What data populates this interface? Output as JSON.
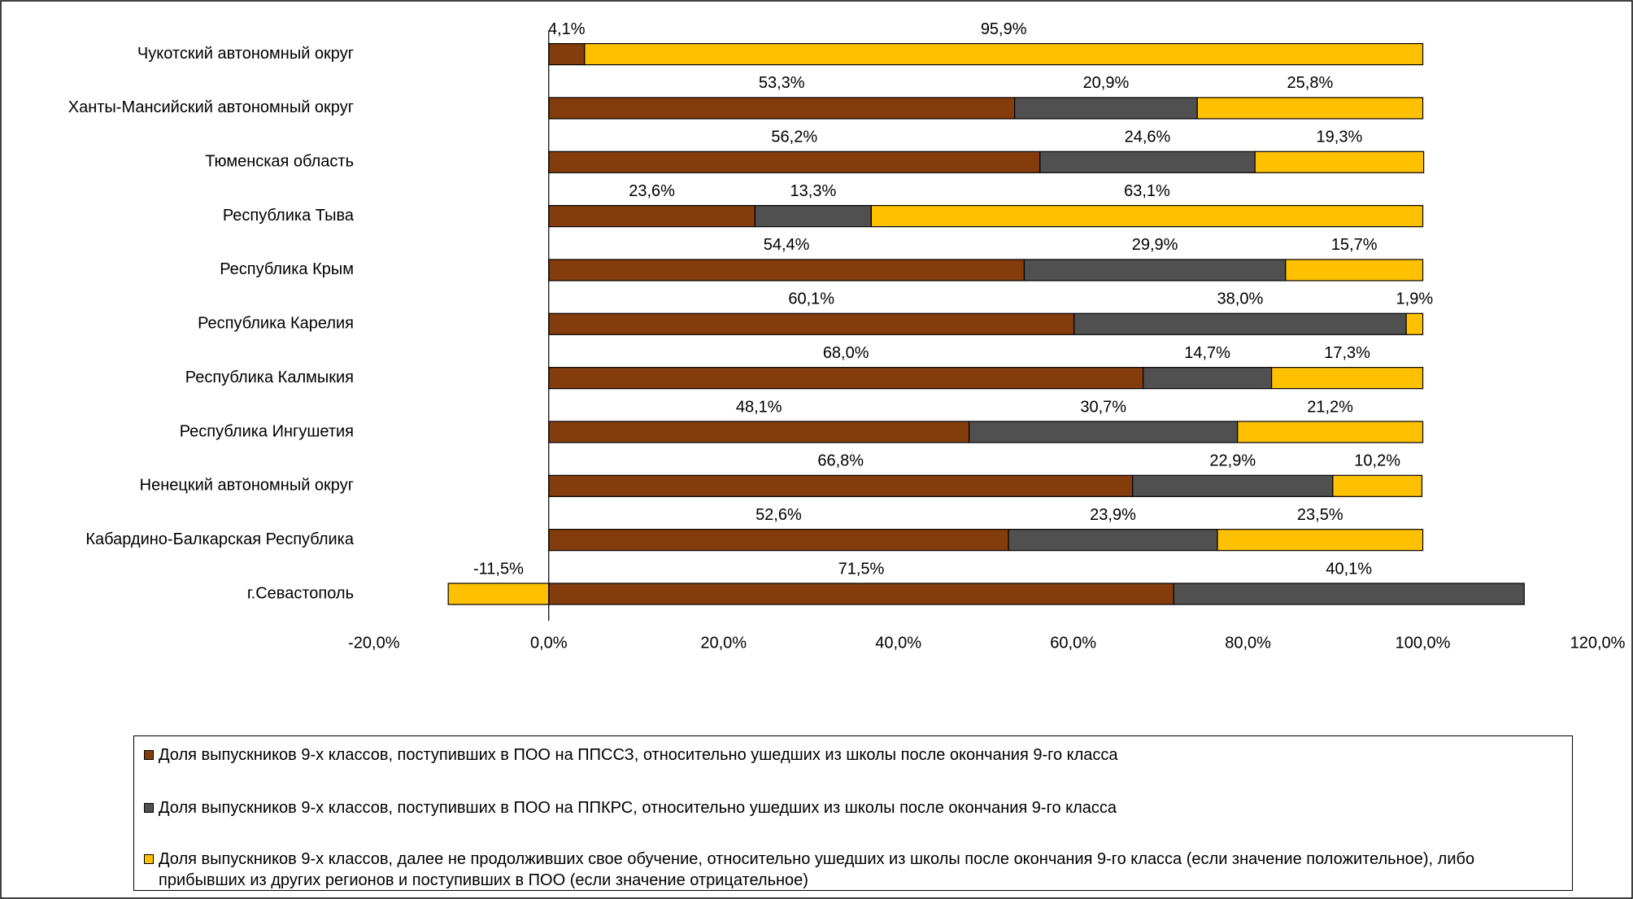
{
  "chart_data": {
    "type": "stacked-bar-horizontal",
    "categories": [
      "Чукотский автономный округ",
      "Ханты-Мансийский автономный округ",
      "Тюменская область",
      "Республика Тыва",
      "Республика Крым",
      "Республика Карелия",
      "Республика Калмыкия",
      "Республика Ингушетия",
      "Ненецкий автономный округ",
      "Кабардино-Балкарская Республика",
      "г.Севастополь"
    ],
    "series": [
      {
        "name": "Доля выпускников 9-х классов, поступивших в ПОО на ППССЗ, относительно ушедших из школы после окончания 9-го класса",
        "color": "#843c0c",
        "values": [
          4.1,
          53.3,
          56.2,
          23.6,
          54.4,
          60.1,
          68.0,
          48.1,
          66.8,
          52.6,
          71.5
        ],
        "value_labels": [
          "4,1%",
          "53,3%",
          "56,2%",
          "23,6%",
          "54,4%",
          "60,1%",
          "68,0%",
          "48,1%",
          "66,8%",
          "52,6%",
          "71,5%"
        ]
      },
      {
        "name": "Доля выпускников 9-х классов, поступивших в ПОО на ППКРС, относительно ушедших из школы после окончания 9-го класса",
        "color": "#505050",
        "values": [
          null,
          20.9,
          24.6,
          13.3,
          29.9,
          38.0,
          14.7,
          30.7,
          22.9,
          23.9,
          40.1
        ],
        "value_labels": [
          null,
          "20,9%",
          "24,6%",
          "13,3%",
          "29,9%",
          "38,0%",
          "14,7%",
          "30,7%",
          "22,9%",
          "23,9%",
          "40,1%"
        ]
      },
      {
        "name": "Доля выпускников 9-х классов, далее не продолживших свое обучение, относительно ушедших из школы после окончания 9-го класса (если значение положительное), либо прибывших из других регионов и поступивших в ПОО (если значение отрицательное)",
        "color": "#ffc000",
        "values": [
          95.9,
          25.8,
          19.3,
          63.1,
          15.7,
          1.9,
          17.3,
          21.2,
          10.2,
          23.5,
          -11.5
        ],
        "value_labels": [
          "95,9%",
          "25,8%",
          "19,3%",
          "63,1%",
          "15,7%",
          "1,9%",
          "17,3%",
          "21,2%",
          "10,2%",
          "23,5%",
          "-11,5%"
        ]
      }
    ],
    "xlim": [
      -20,
      120
    ],
    "xticks": [
      {
        "value": -20,
        "label": "-20,0%"
      },
      {
        "value": 0,
        "label": "0,0%"
      },
      {
        "value": 20,
        "label": "20,0%"
      },
      {
        "value": 40,
        "label": "40,0%"
      },
      {
        "value": 60,
        "label": "60,0%"
      },
      {
        "value": 80,
        "label": "80,0%"
      },
      {
        "value": 100,
        "label": "100,0%"
      },
      {
        "value": 120,
        "label": "120,0%"
      }
    ],
    "legend": "bottom"
  }
}
